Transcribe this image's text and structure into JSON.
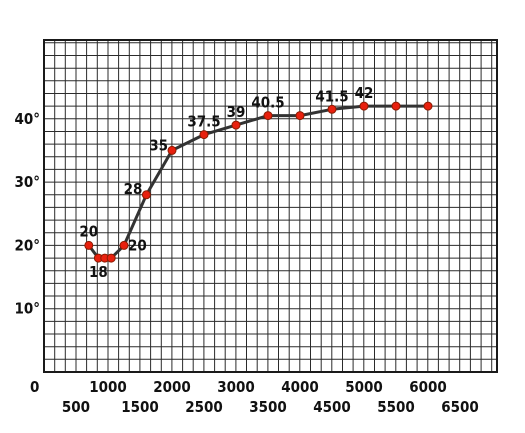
{
  "chart_data": {
    "type": "line",
    "title": "",
    "xlabel": "",
    "ylabel": "",
    "xlim": [
      0,
      6500
    ],
    "ylim": [
      0,
      50
    ],
    "grid": true,
    "point_color": "#e8200e",
    "line_color": "#333333",
    "x_tick_labels": [
      {
        "value": 0,
        "label": "0"
      },
      {
        "value": 500,
        "label": "500"
      },
      {
        "value": 1000,
        "label": "1000"
      },
      {
        "value": 1500,
        "label": "1500"
      },
      {
        "value": 2000,
        "label": "2000"
      },
      {
        "value": 2500,
        "label": "2500"
      },
      {
        "value": 3000,
        "label": "3000"
      },
      {
        "value": 3500,
        "label": "3500"
      },
      {
        "value": 4000,
        "label": "4000"
      },
      {
        "value": 4500,
        "label": "4500"
      },
      {
        "value": 5000,
        "label": "5000"
      },
      {
        "value": 5500,
        "label": "5500"
      },
      {
        "value": 6000,
        "label": "6000"
      },
      {
        "value": 6500,
        "label": "6500"
      }
    ],
    "y_tick_labels": [
      {
        "value": 10,
        "label": "10°"
      },
      {
        "value": 20,
        "label": "20°"
      },
      {
        "value": 30,
        "label": "30°"
      },
      {
        "value": 40,
        "label": "40°"
      }
    ],
    "series": [
      {
        "x": [
          700,
          850,
          950,
          1050,
          1250,
          1600,
          2000,
          2500,
          3000,
          3500,
          4000,
          4500,
          5000,
          5500,
          6000
        ],
        "y": [
          20,
          18,
          18,
          18,
          20,
          28,
          35,
          37.5,
          39,
          40.5,
          40.5,
          41.5,
          42,
          42,
          42
        ]
      }
    ],
    "data_labels": [
      {
        "x": 700,
        "y": 20,
        "text": "20"
      },
      {
        "x": 850,
        "y": 18,
        "text": "18"
      },
      {
        "x": 1250,
        "y": 20,
        "text": "20"
      },
      {
        "x": 1600,
        "y": 28,
        "text": "28"
      },
      {
        "x": 2000,
        "y": 35,
        "text": "35"
      },
      {
        "x": 2500,
        "y": 37.5,
        "text": "37.5"
      },
      {
        "x": 3000,
        "y": 39,
        "text": "39"
      },
      {
        "x": 3500,
        "y": 40.5,
        "text": "40.5"
      },
      {
        "x": 4500,
        "y": 41.5,
        "text": "41.5"
      },
      {
        "x": 5000,
        "y": 42,
        "text": "42"
      }
    ]
  }
}
